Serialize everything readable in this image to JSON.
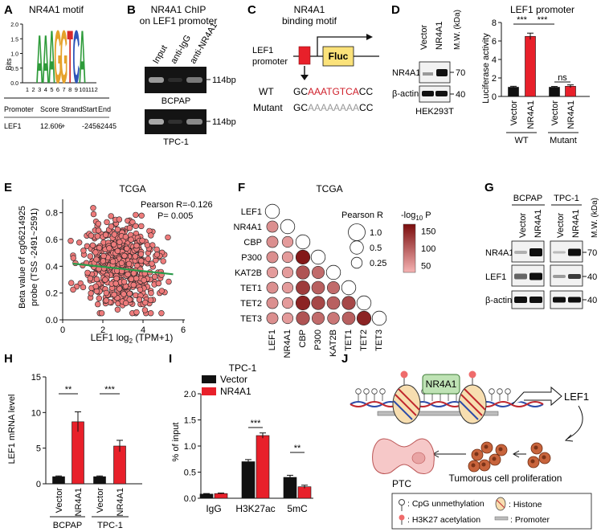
{
  "panels": {
    "A": {
      "letter": "A",
      "title": "NR4A1 motif",
      "ylabel": "Bits",
      "yticks": [
        "0.0",
        "0.5",
        "1.0",
        "1.5",
        "2.0"
      ],
      "positions": [
        "1",
        "2",
        "3",
        "4",
        "5",
        "6",
        "7",
        "8",
        "9",
        "10",
        "11",
        "12"
      ],
      "logo_letters": [
        "A",
        "A",
        "A",
        "G",
        "G",
        "T",
        "C",
        "A"
      ],
      "table_headers": [
        "Promoter",
        "Score",
        "Strand",
        "Start",
        "End"
      ],
      "table_row": [
        "LEF1",
        "12.606",
        "+",
        "-2456",
        "-2445"
      ]
    },
    "B": {
      "letter": "B",
      "title_line1": "NR4A1 ChIP",
      "title_line2": "on LEF1 promoter",
      "lanes": [
        "Input",
        "anti-IgG",
        "anti-NR4A1"
      ],
      "blot1_label": "BCPAP",
      "blot2_label": "TPC-1",
      "band_size": "114bp"
    },
    "C": {
      "letter": "C",
      "title_line1": "NR4A1",
      "title_line2": "binding motif",
      "promoter_line1": "LEF1",
      "promoter_line2": "promoter",
      "reporter": "Fluc",
      "wt_label": "WT",
      "wt_prefix": "GC",
      "wt_motif": "AAATGTCA",
      "wt_suffix": "CC",
      "mut_label": "Mutant",
      "mut_prefix": "GC",
      "mut_motif": "AAAAAAAA",
      "mut_suffix": "CC"
    },
    "D": {
      "letter": "D",
      "lanes": [
        "Vector",
        "NR4A1"
      ],
      "mw_label": "M.W. (kDa)",
      "rows": [
        "NR4A1",
        "β-actin"
      ],
      "mw_values": [
        "70",
        "40"
      ],
      "cell_line": "HEK293T",
      "chart_title": "LEF1 promoter",
      "ylabel": "Luciferase activity",
      "yticks": [
        "0",
        "2",
        "4",
        "6",
        "8"
      ],
      "group_labels": [
        "WT",
        "Mutant"
      ],
      "sig": [
        "***",
        "***",
        "ns"
      ]
    },
    "E": {
      "letter": "E",
      "title": "TCGA",
      "ylabel_line1": "Beta value of cg06214925",
      "ylabel_line2": "probe (TSS -2491~2591)",
      "xlabel": "LEF1 log2 (TPM+1)",
      "xlabel_main": "LEF1 log",
      "xlabel_sub": "2",
      "xlabel_tail": " (TPM+1)",
      "stat_r": "Pearson R=-0.126",
      "stat_p": "P= 0.005",
      "xticks": [
        "0",
        "2",
        "4",
        "6"
      ],
      "yticks": [
        "0.0",
        "0.2",
        "0.4",
        "0.6",
        "0.8"
      ]
    },
    "F": {
      "letter": "F",
      "title": "TCGA",
      "genes": [
        "LEF1",
        "NR4A1",
        "CBP",
        "P300",
        "KAT2B",
        "TET1",
        "TET2",
        "TET3"
      ],
      "size_legend_title": "Pearson R",
      "size_legend_values": [
        "1.0",
        "0.5",
        "0.25"
      ],
      "color_legend_title": "-log10 P",
      "color_legend_ticks": [
        "150",
        "100",
        "50"
      ]
    },
    "G": {
      "letter": "G",
      "groups": [
        "BCPAP",
        "TPC-1"
      ],
      "lanes": [
        "Vector",
        "NR4A1",
        "Vector",
        "NR4A1"
      ],
      "mw_label": "M.W. (kDa)",
      "rows": [
        "NR4A1",
        "LEF1",
        "β-actin"
      ],
      "mw_values": [
        "70",
        "40",
        "40"
      ]
    },
    "H": {
      "letter": "H",
      "ylabel": "LEF1 mRNA level",
      "yticks": [
        "0",
        "5",
        "10",
        "15"
      ],
      "group_labels": [
        "BCPAP",
        "TPC-1"
      ],
      "sig": [
        "**",
        "***"
      ]
    },
    "I": {
      "letter": "I",
      "title": "TPC-1",
      "ylabel": "% of input",
      "yticks": [
        "0.0",
        "0.5",
        "1.0",
        "1.5",
        "2.0"
      ],
      "legend": [
        "Vector",
        "NR4A1"
      ],
      "sig": [
        "***",
        "**"
      ]
    },
    "J": {
      "letter": "J",
      "nr4a1_box": "NR4A1",
      "target": "LEF1",
      "ptc": "PTC",
      "proliferation": "Tumorous cell proliferation",
      "legend_cpg": ": CpG unmethylation",
      "legend_histone": ": Histone",
      "legend_h3k27": ": H3K27 acetylation",
      "legend_promoter": ": Promoter"
    }
  },
  "colors": {
    "vector": "#111111",
    "nr4a1": "#e8202a",
    "regression": "#2a9a4a",
    "point_fill": "#ee7b7b",
    "heat_low": "#f6b3b3",
    "heat_high": "#7a0c0c",
    "motif_red": "#cf1f2a"
  },
  "chart_data": [
    {
      "type": "bar",
      "panel": "D",
      "title": "LEF1 promoter",
      "ylabel": "Luciferase activity",
      "categories": [
        "Vector",
        "NR4A1",
        "Vector",
        "NR4A1"
      ],
      "groups": [
        "WT",
        "WT",
        "Mutant",
        "Mutant"
      ],
      "values": [
        1.0,
        6.5,
        1.0,
        1.1
      ],
      "errors": [
        0.1,
        0.35,
        0.08,
        0.15
      ],
      "ylim": [
        0,
        8
      ]
    },
    {
      "type": "scatter",
      "panel": "E",
      "title": "TCGA",
      "xlabel": "LEF1 log2 (TPM+1)",
      "ylabel": "Beta value of cg06214925 probe (TSS -2491~2591)",
      "xlim": [
        0,
        6
      ],
      "ylim": [
        0,
        0.9
      ],
      "n_points": 500,
      "x_range": [
        0.3,
        5.6
      ],
      "y_range": [
        0.05,
        0.85
      ],
      "regression": {
        "x": [
          0.5,
          5.5
        ],
        "y": [
          0.42,
          0.34
        ]
      },
      "pearson_r": -0.126,
      "p_value": 0.005
    },
    {
      "type": "heatmap",
      "panel": "F",
      "title": "TCGA",
      "genes": [
        "LEF1",
        "NR4A1",
        "CBP",
        "P300",
        "KAT2B",
        "TET1",
        "TET2",
        "TET3"
      ],
      "r": [
        [
          1
        ],
        [
          0.3,
          1
        ],
        [
          0.3,
          0.25,
          1
        ],
        [
          0.3,
          0.25,
          0.6,
          1
        ],
        [
          0.25,
          0.25,
          0.5,
          0.4,
          1
        ],
        [
          0.3,
          0.25,
          0.55,
          0.45,
          0.4,
          1
        ],
        [
          0.3,
          0.25,
          0.6,
          0.5,
          0.45,
          0.5,
          1
        ],
        [
          0.3,
          0.25,
          0.5,
          0.4,
          0.35,
          0.45,
          0.6,
          1
        ]
      ],
      "neglog10p": [
        [
          0
        ],
        [
          60,
          0
        ],
        [
          60,
          50,
          0
        ],
        [
          60,
          50,
          160,
          0
        ],
        [
          50,
          50,
          110,
          90,
          0
        ],
        [
          60,
          50,
          130,
          100,
          90,
          0
        ],
        [
          60,
          50,
          150,
          120,
          100,
          120,
          0
        ],
        [
          60,
          50,
          110,
          90,
          80,
          100,
          150,
          0
        ]
      ]
    },
    {
      "type": "bar",
      "panel": "H",
      "ylabel": "LEF1 mRNA level",
      "categories": [
        "Vector",
        "NR4A1",
        "Vector",
        "NR4A1"
      ],
      "groups": [
        "BCPAP",
        "BCPAP",
        "TPC-1",
        "TPC-1"
      ],
      "values": [
        1.0,
        8.7,
        1.0,
        5.3
      ],
      "errors": [
        0.1,
        1.4,
        0.1,
        0.8
      ],
      "ylim": [
        0,
        15
      ]
    },
    {
      "type": "bar",
      "panel": "I",
      "title": "TPC-1",
      "ylabel": "% of input",
      "categories": [
        "IgG",
        "H3K27ac",
        "5mC"
      ],
      "series": [
        {
          "name": "Vector",
          "values": [
            0.08,
            0.7,
            0.4
          ],
          "errors": [
            0.01,
            0.04,
            0.04
          ]
        },
        {
          "name": "NR4A1",
          "values": [
            0.09,
            1.2,
            0.22
          ],
          "errors": [
            0.01,
            0.05,
            0.03
          ]
        }
      ],
      "ylim": [
        0,
        2.0
      ]
    }
  ]
}
